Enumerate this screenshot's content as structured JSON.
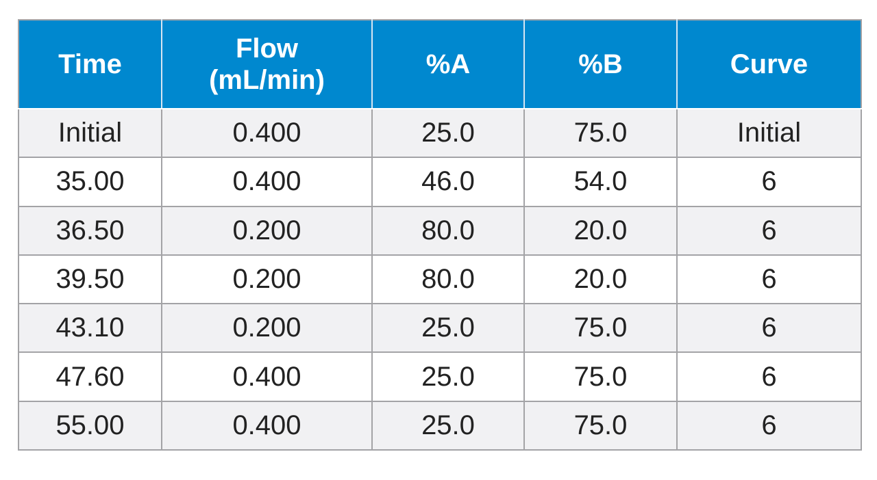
{
  "table": {
    "header": [
      "Time",
      "Flow\n(mL/min)",
      "%A",
      "%B",
      "Curve"
    ],
    "rows": [
      [
        "Initial",
        "0.400",
        "25.0",
        "75.0",
        "Initial"
      ],
      [
        "35.00",
        "0.400",
        "46.0",
        "54.0",
        "6"
      ],
      [
        "36.50",
        "0.200",
        "80.0",
        "20.0",
        "6"
      ],
      [
        "39.50",
        "0.200",
        "80.0",
        "20.0",
        "6"
      ],
      [
        "43.10",
        "0.200",
        "25.0",
        "75.0",
        "6"
      ],
      [
        "47.60",
        "0.400",
        "25.0",
        "75.0",
        "6"
      ],
      [
        "55.00",
        "0.400",
        "25.0",
        "75.0",
        "6"
      ]
    ]
  }
}
